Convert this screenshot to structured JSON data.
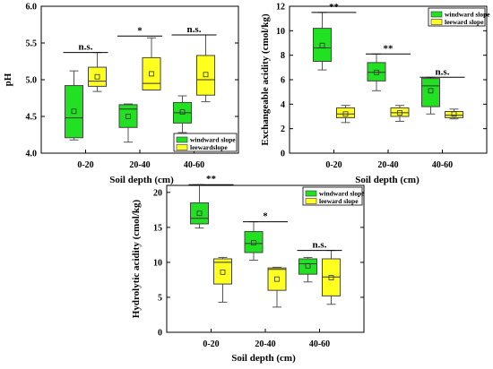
{
  "chart_data": [
    {
      "type": "box",
      "xlabel": "Soil depth (cm)",
      "ylabel": "pH",
      "ylim": [
        4.0,
        6.0
      ],
      "yticks": [
        4.0,
        4.5,
        5.0,
        5.5,
        6.0
      ],
      "categories": [
        "0-20",
        "20-40",
        "40-60"
      ],
      "legend": {
        "position": "bottom-right",
        "entries": [
          "windward slope",
          "leewardslope"
        ]
      },
      "series": [
        {
          "name": "windward slope",
          "color": "#22e022",
          "boxes": [
            {
              "min": 4.18,
              "q1": 4.21,
              "median": 4.48,
              "q3": 4.92,
              "max": 5.12,
              "mean": 4.57
            },
            {
              "min": 4.15,
              "q1": 4.35,
              "median": 4.6,
              "q3": 4.66,
              "max": 4.67,
              "mean": 4.5
            },
            {
              "min": 4.28,
              "q1": 4.41,
              "median": 4.55,
              "q3": 4.69,
              "max": 4.78,
              "mean": 4.56
            }
          ]
        },
        {
          "name": "leewardslope",
          "color": "#ffff20",
          "boxes": [
            {
              "min": 4.84,
              "q1": 4.91,
              "median": 4.98,
              "q3": 5.17,
              "max": 5.37,
              "mean": 5.04
            },
            {
              "min": 4.86,
              "q1": 4.86,
              "median": 4.95,
              "q3": 5.3,
              "max": 5.57,
              "mean": 5.08
            },
            {
              "min": 4.7,
              "q1": 4.79,
              "median": 5.0,
              "q3": 5.33,
              "max": 5.61,
              "mean": 5.07
            }
          ]
        }
      ],
      "significance": [
        "n.s.",
        "*",
        "n.s."
      ]
    },
    {
      "type": "box",
      "xlabel": "Soil depth (cm)",
      "ylabel": "Exchangeable acidity (cmol/kg)",
      "ylim": [
        0,
        12
      ],
      "yticks": [
        0,
        2,
        4,
        6,
        8,
        10,
        12
      ],
      "categories": [
        "0-20",
        "20-40",
        "40-60"
      ],
      "legend": {
        "position": "top-right",
        "entries": [
          "windward slope",
          "leeward slope"
        ]
      },
      "series": [
        {
          "name": "windward slope",
          "color": "#22e022",
          "boxes": [
            {
              "min": 6.8,
              "q1": 7.5,
              "median": 8.6,
              "q3": 10.2,
              "max": 11.5,
              "mean": 8.8
            },
            {
              "min": 5.1,
              "q1": 5.9,
              "median": 6.6,
              "q3": 7.4,
              "max": 8.1,
              "mean": 6.6
            },
            {
              "min": 3.2,
              "q1": 3.8,
              "median": 5.5,
              "q3": 6.1,
              "max": 6.2,
              "mean": 5.1
            }
          ]
        },
        {
          "name": "leeward slope",
          "color": "#ffff20",
          "boxes": [
            {
              "min": 2.5,
              "q1": 2.9,
              "median": 3.2,
              "q3": 3.7,
              "max": 3.9,
              "mean": 3.2
            },
            {
              "min": 2.6,
              "q1": 3.0,
              "median": 3.3,
              "q3": 3.7,
              "max": 3.9,
              "mean": 3.3
            },
            {
              "min": 2.8,
              "q1": 2.9,
              "median": 3.1,
              "q3": 3.4,
              "max": 3.6,
              "mean": 3.2
            }
          ]
        }
      ],
      "significance": [
        "**",
        "**",
        "n.s."
      ]
    },
    {
      "type": "box",
      "xlabel": "Soil depth (cm)",
      "ylabel": "Hydrolytic acidity (cmol/kg)",
      "ylim": [
        0,
        21
      ],
      "yticks": [
        0,
        5,
        10,
        15,
        20
      ],
      "categories": [
        "0-20",
        "20-40",
        "40-60"
      ],
      "legend": {
        "position": "top-right",
        "entries": [
          "windward slope",
          "leeward slope"
        ]
      },
      "series": [
        {
          "name": "windward slope",
          "color": "#22e022",
          "boxes": [
            {
              "min": 14.9,
              "q1": 15.5,
              "median": 16.3,
              "q3": 18.5,
              "max": 21.1,
              "mean": 17.0
            },
            {
              "min": 10.3,
              "q1": 11.4,
              "median": 12.7,
              "q3": 14.4,
              "max": 15.8,
              "mean": 12.8
            },
            {
              "min": 7.2,
              "q1": 8.3,
              "median": 9.8,
              "q3": 10.5,
              "max": 10.7,
              "mean": 9.5
            }
          ]
        },
        {
          "name": "leeward slope",
          "color": "#ffff20",
          "boxes": [
            {
              "min": 4.3,
              "q1": 6.9,
              "median": 10.0,
              "q3": 10.5,
              "max": 10.7,
              "mean": 8.6
            },
            {
              "min": 3.6,
              "q1": 6.0,
              "median": 9.0,
              "q3": 9.2,
              "max": 9.3,
              "mean": 7.6
            },
            {
              "min": 4.0,
              "q1": 5.2,
              "median": 7.9,
              "q3": 10.5,
              "max": 11.7,
              "mean": 7.8
            }
          ]
        }
      ],
      "significance": [
        "**",
        "*",
        "n.s."
      ]
    }
  ]
}
